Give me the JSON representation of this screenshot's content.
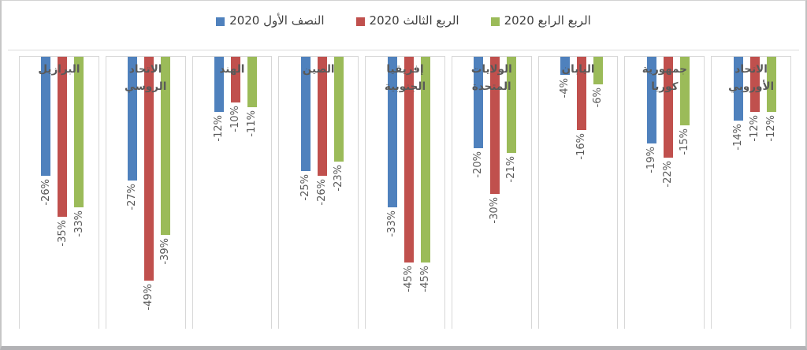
{
  "chart_data": {
    "type": "bar",
    "direction": "rtl",
    "title": "",
    "xlabel": "",
    "ylabel": "",
    "unit": "%",
    "ylim": [
      0,
      -60
    ],
    "grid": false,
    "legend_position": "top",
    "data_labels": "rotated-90-below-bars",
    "categories": [
      "البرازيل",
      "الاتحاد الروسي",
      "الهند",
      "الصين",
      "إفريقيا الجنوبية",
      "الولايات المتحدة",
      "اليابان",
      "جمهورية كوريا",
      "الاتحاد الأوروبي"
    ],
    "categories_display": [
      "البرازيل",
      "الاتحاد\nالروسي",
      "الهند",
      "الصين",
      "إفريقيا\nالجنوبية",
      "الولايات\nالمتحدة",
      "اليابان",
      "جمهورية\nكوريا",
      "الاتحاد\nالأوروبي"
    ],
    "series": [
      {
        "name": "النصف الأول 2020",
        "color": "#4F81BD",
        "values": [
          -26,
          -27,
          -12,
          -25,
          -33,
          -20,
          -4,
          -19,
          -14
        ]
      },
      {
        "name": "الربع الثالث 2020",
        "color": "#C0504D",
        "values": [
          -35,
          -49,
          -10,
          -26,
          -45,
          -30,
          -16,
          -22,
          -12
        ]
      },
      {
        "name": "الربع الرابع 2020",
        "color": "#9BBB59",
        "values": [
          -33,
          -39,
          -11,
          -23,
          -45,
          -21,
          -6,
          -15,
          -12
        ]
      }
    ],
    "colors": {
      "panel_border": "#d7d7d7",
      "axis_line": "#dcdcdc",
      "category_label_text": "#595959",
      "value_label_text": "#595959",
      "legend_text": "#3f3f3f"
    }
  }
}
